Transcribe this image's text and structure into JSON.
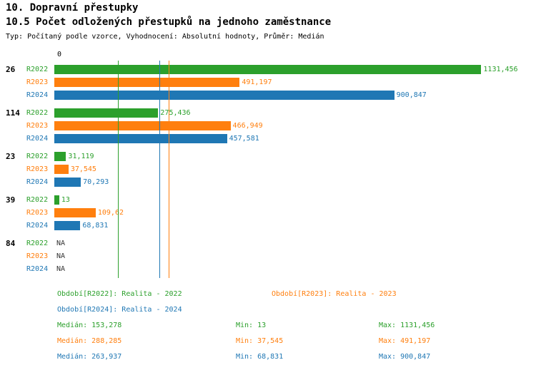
{
  "title": "10. Dopravní přestupky",
  "subtitle": "10.5 Počet odložených přestupků na jednoho zaměstnance",
  "meta": "Typ: Počítaný podle vzorce, Vyhodnocení: Absolutní hodnoty, Průměr: Medián",
  "colors": {
    "r2022": "#2ca02c",
    "r2023": "#ff7f0e",
    "r2024": "#1f77b4",
    "na_text": "#333333"
  },
  "chart_data": {
    "type": "bar",
    "orientation": "horizontal",
    "zero_label": "0",
    "xlim": [
      0,
      1250
    ],
    "grid": false,
    "legend_position": "bottom",
    "categories": [
      "26",
      "114",
      "23",
      "39",
      "84"
    ],
    "series": [
      {
        "name": "R2022",
        "color": "#2ca02c",
        "median": 153.278,
        "values": [
          1131.456,
          275.436,
          31.119,
          13,
          null
        ],
        "value_labels": [
          "1131,456",
          "275,436",
          "31,119",
          "13",
          "NA"
        ]
      },
      {
        "name": "R2023",
        "color": "#ff7f0e",
        "median": 288.285,
        "values": [
          491.197,
          466.949,
          37.545,
          109.62,
          null
        ],
        "value_labels": [
          "491,197",
          "466,949",
          "37,545",
          "109,62",
          "NA"
        ]
      },
      {
        "name": "R2024",
        "color": "#1f77b4",
        "median": 263.937,
        "values": [
          900.847,
          457.581,
          70.293,
          68.831,
          null
        ],
        "value_labels": [
          "900,847",
          "457,581",
          "70,293",
          "68,831",
          "NA"
        ]
      }
    ],
    "na_color": "#333333"
  },
  "legend": [
    {
      "label": "Období[R2022]: Realita - 2022",
      "color": "#2ca02c"
    },
    {
      "label": "Období[R2023]: Realita - 2023",
      "color": "#ff7f0e"
    },
    {
      "label": "Období[R2024]: Realita - 2024",
      "color": "#1f77b4"
    }
  ],
  "stats": [
    {
      "median": "Medián: 153,278",
      "min": "Min: 13",
      "max": "Max: 1131,456",
      "color": "#2ca02c"
    },
    {
      "median": "Medián: 288,285",
      "min": "Min: 37,545",
      "max": "Max: 491,197",
      "color": "#ff7f0e"
    },
    {
      "median": "Medián: 263,937",
      "min": "Min: 68,831",
      "max": "Max: 900,847",
      "color": "#1f77b4"
    }
  ]
}
